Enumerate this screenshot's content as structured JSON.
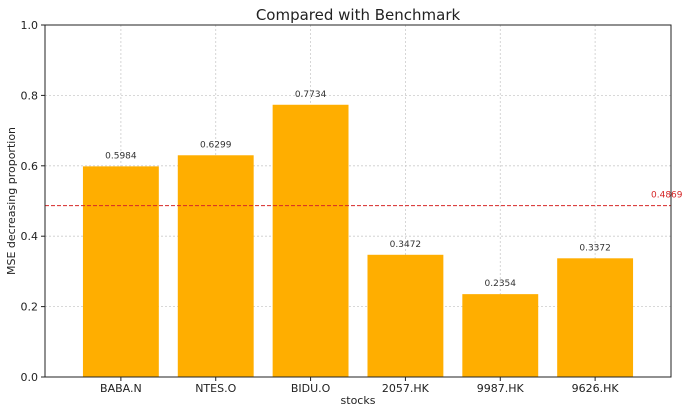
{
  "chart_data": {
    "type": "bar",
    "title": "Compared with Benchmark",
    "xlabel": "stocks",
    "ylabel": "MSE decreasing proportion",
    "categories": [
      "BABA.N",
      "NTES.O",
      "BIDU.O",
      "2057.HK",
      "9987.HK",
      "9626.HK"
    ],
    "values": [
      0.5984,
      0.6299,
      0.7734,
      0.3472,
      0.2354,
      0.3372
    ],
    "data_labels": [
      "0.5984",
      "0.6299",
      "0.7734",
      "0.3472",
      "0.2354",
      "0.3372"
    ],
    "ylim": [
      0,
      1.0
    ],
    "yticks": [
      "0.0",
      "0.2",
      "0.4",
      "0.6",
      "0.8",
      "1.0"
    ],
    "grid": true,
    "bar_color": "#ffae00",
    "benchmark": {
      "value": 0.4869,
      "label": "0.4869",
      "color": "#d62728",
      "style": "dashed"
    }
  }
}
